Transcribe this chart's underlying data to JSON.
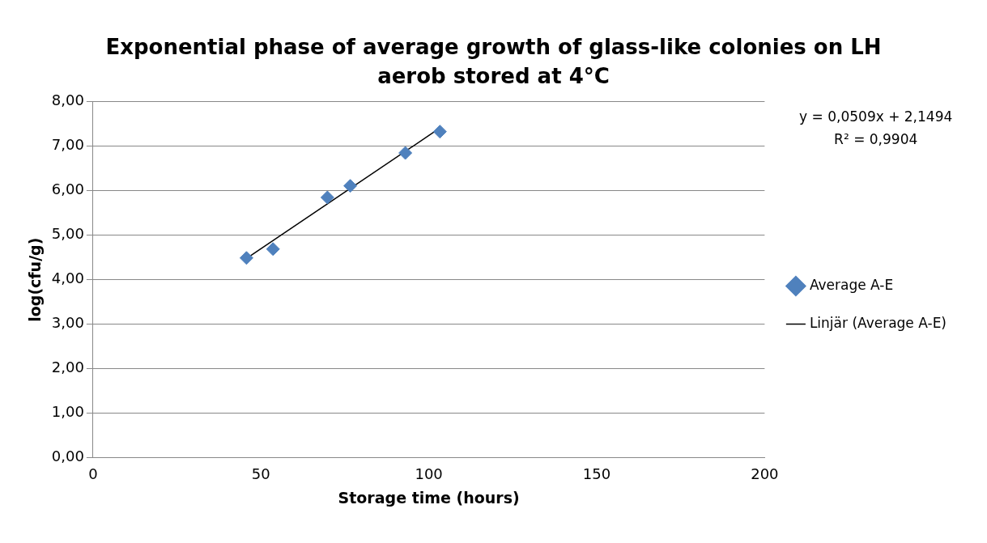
{
  "chart_data": {
    "type": "scatter",
    "title": "Exponential phase of average growth of glass-like colonies on LH aerob stored at 4°C",
    "xlabel": "Storage time (hours)",
    "ylabel": "log(cfu/g)",
    "series": [
      {
        "name": "Average A-E",
        "color": "#4f81bd",
        "type": "scatter",
        "marker": "diamond",
        "x": [
          45.7,
          53.6,
          69.8,
          76.6,
          93.0,
          103.3
        ],
        "values": [
          4.49,
          4.69,
          5.85,
          6.11,
          6.85,
          7.33
        ]
      },
      {
        "name": "Linjär (Average A-E)",
        "color": "#000000",
        "type": "line",
        "marker": "none",
        "x": [
          45.7,
          103.3
        ],
        "values": [
          4.48,
          7.41
        ]
      }
    ],
    "xlim": [
      0,
      200
    ],
    "xticks": [
      0,
      50,
      100,
      150,
      200
    ],
    "ylim": [
      0,
      8
    ],
    "yticks": [
      {
        "value": 0,
        "label": "0,00"
      },
      {
        "value": 1,
        "label": "1,00"
      },
      {
        "value": 2,
        "label": "2,00"
      },
      {
        "value": 3,
        "label": "3,00"
      },
      {
        "value": 4,
        "label": "4,00"
      },
      {
        "value": 5,
        "label": "5,00"
      },
      {
        "value": 6,
        "label": "6,00"
      },
      {
        "value": 7,
        "label": "7,00"
      },
      {
        "value": 8,
        "label": "8,00"
      }
    ],
    "grid": "y",
    "legend": "right",
    "annotations": [
      "y = 0,0509x + 2,1494",
      "R² = 0,9904"
    ]
  }
}
